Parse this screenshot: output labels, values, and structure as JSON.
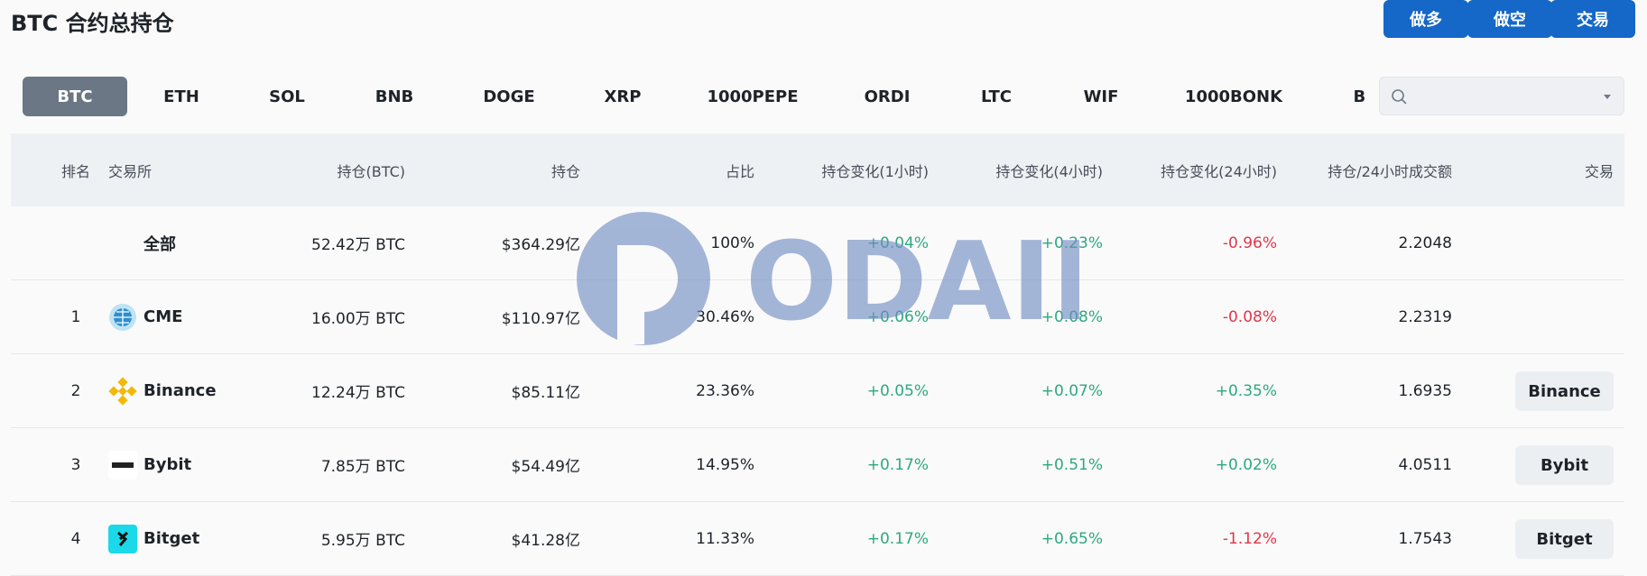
{
  "header": {
    "title": "BTC 合约总持仓",
    "buttons": [
      "做多",
      "做空",
      "交易"
    ]
  },
  "tabs": {
    "items": [
      "BTC",
      "ETH",
      "SOL",
      "BNB",
      "DOGE",
      "XRP",
      "1000PEPE",
      "ORDI",
      "LTC",
      "WIF",
      "1000BONK",
      "BO"
    ],
    "active": 0
  },
  "table": {
    "columns": [
      "排名",
      "交易所",
      "持仓(BTC)",
      "持仓",
      "占比",
      "持仓变化(1小时)",
      "持仓变化(4小时)",
      "持仓变化(24小时)",
      "持仓/24小时成交额",
      "交易"
    ],
    "rows": [
      {
        "exchange": "全部",
        "oi": "52.42万 BTC",
        "oi_usd": "$364.29亿",
        "share": "100%",
        "ch1h": "+0.04%",
        "ch4h": "+0.23%",
        "ch24h": "-0.96%",
        "ratio": "2.2048"
      },
      {
        "rank": "1",
        "exchange": "CME",
        "oi": "16.00万 BTC",
        "oi_usd": "$110.97亿",
        "share": "30.46%",
        "ch1h": "+0.06%",
        "ch4h": "+0.08%",
        "ch24h": "-0.08%",
        "ratio": "2.2319"
      },
      {
        "rank": "2",
        "exchange": "Binance",
        "oi": "12.24万 BTC",
        "oi_usd": "$85.11亿",
        "share": "23.36%",
        "ch1h": "+0.05%",
        "ch4h": "+0.07%",
        "ch24h": "+0.35%",
        "ratio": "1.6935",
        "trade": "Binance"
      },
      {
        "rank": "3",
        "exchange": "Bybit",
        "oi": "7.85万 BTC",
        "oi_usd": "$54.49亿",
        "share": "14.95%",
        "ch1h": "+0.17%",
        "ch4h": "+0.51%",
        "ch24h": "+0.02%",
        "ratio": "4.0511",
        "trade": "Bybit"
      },
      {
        "rank": "4",
        "exchange": "Bitget",
        "oi": "5.95万 BTC",
        "oi_usd": "$41.28亿",
        "share": "11.33%",
        "ch1h": "+0.17%",
        "ch4h": "+0.65%",
        "ch24h": "-1.12%",
        "ratio": "1.7543",
        "trade": "Bitget"
      }
    ]
  },
  "watermark": "ODAILY"
}
